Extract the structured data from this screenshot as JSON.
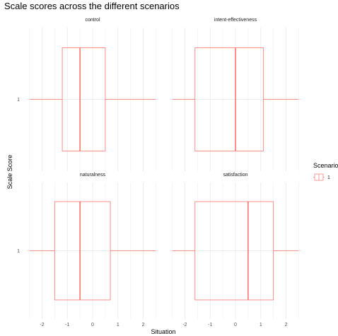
{
  "chart_data": {
    "type": "boxplot",
    "title": "Scale scores across the different scenarios",
    "xlabel": "Situation",
    "ylabel": "Scale Score",
    "xlim": [
      -2.6,
      2.6
    ],
    "x_ticks": [
      -2,
      -1,
      0,
      1,
      2
    ],
    "y_category": "1",
    "grid": true,
    "legend": {
      "title": "Scenario",
      "entries": [
        "1"
      ],
      "position": "right"
    },
    "series_color": "#F8766D",
    "panels": [
      {
        "name": "control",
        "min": -2.5,
        "q1": -1.2,
        "median": -0.5,
        "q3": 0.5,
        "max": 2.5
      },
      {
        "name": "intent-effectiveness",
        "min": -2.5,
        "q1": -1.6,
        "median": 0.0,
        "q3": 1.1,
        "max": 2.5
      },
      {
        "name": "naturalness",
        "min": -2.5,
        "q1": -1.5,
        "median": -0.5,
        "q3": 0.7,
        "max": 2.5
      },
      {
        "name": "satisfaction",
        "min": -2.5,
        "q1": -1.6,
        "median": 0.5,
        "q3": 1.5,
        "max": 2.5
      }
    ]
  }
}
